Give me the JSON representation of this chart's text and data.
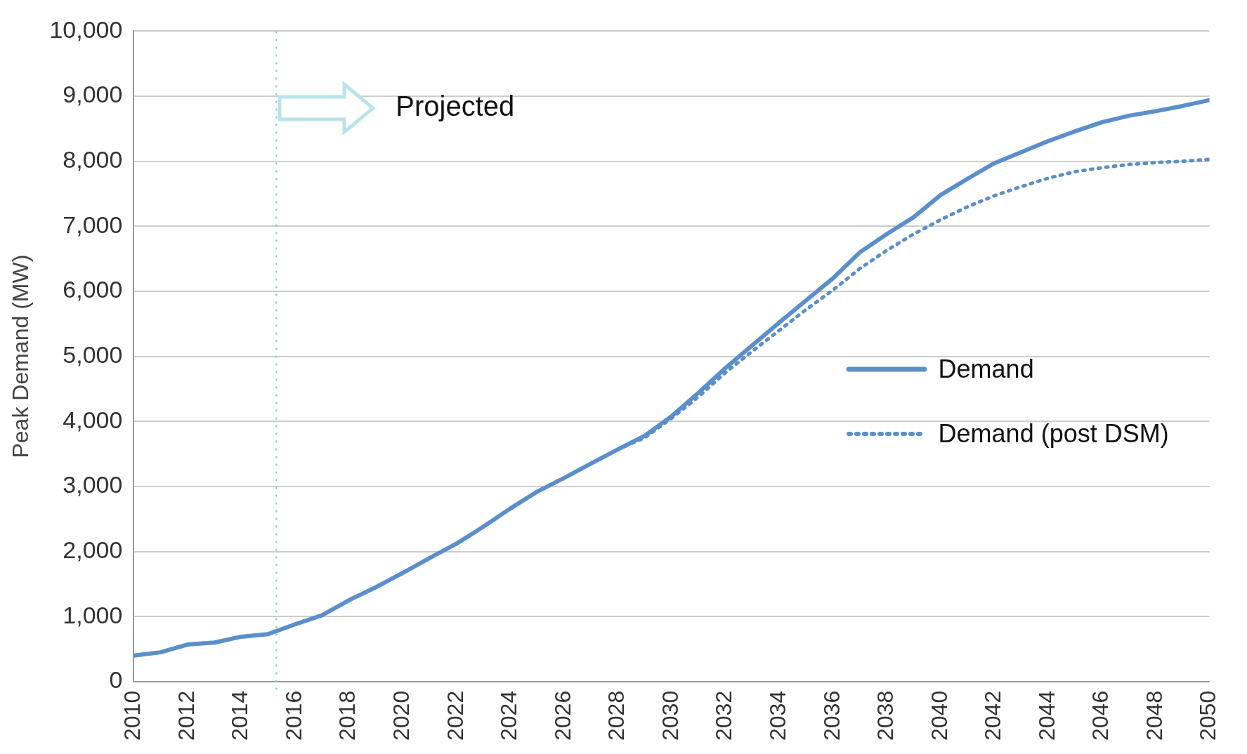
{
  "chart_data": {
    "type": "line",
    "ylabel": "Peak Demand (MW)",
    "x": [
      2010,
      2011,
      2012,
      2013,
      2014,
      2015,
      2016,
      2017,
      2018,
      2019,
      2020,
      2021,
      2022,
      2023,
      2024,
      2025,
      2026,
      2027,
      2028,
      2029,
      2030,
      2031,
      2032,
      2033,
      2034,
      2035,
      2036,
      2037,
      2038,
      2039,
      2040,
      2041,
      2042,
      2043,
      2044,
      2045,
      2046,
      2047,
      2048,
      2049,
      2050
    ],
    "xlim": [
      2010,
      2050
    ],
    "xticks": [
      2010,
      2012,
      2014,
      2016,
      2018,
      2020,
      2022,
      2024,
      2026,
      2028,
      2030,
      2032,
      2034,
      2036,
      2038,
      2040,
      2042,
      2044,
      2046,
      2048,
      2050
    ],
    "series": [
      {
        "name": "Demand",
        "color": "#5b8fcb",
        "line_style": "solid",
        "values": [
          400,
          450,
          570,
          600,
          690,
          730,
          880,
          1020,
          1250,
          1450,
          1670,
          1900,
          2120,
          2380,
          2660,
          2920,
          3130,
          3350,
          3570,
          3780,
          4080,
          4440,
          4820,
          5170,
          5520,
          5860,
          6200,
          6600,
          6880,
          7140,
          7480,
          7730,
          7970,
          8140,
          8310,
          8460,
          8600,
          8700,
          8770,
          8850,
          8940
        ]
      },
      {
        "name": "Demand (post DSM)",
        "color": "#5b8fcb",
        "line_style": "dotted",
        "values": [
          400,
          450,
          570,
          600,
          690,
          730,
          880,
          1020,
          1250,
          1450,
          1670,
          1900,
          2120,
          2380,
          2660,
          2920,
          3130,
          3350,
          3570,
          3750,
          4050,
          4380,
          4750,
          5080,
          5400,
          5720,
          6020,
          6350,
          6630,
          6880,
          7100,
          7300,
          7470,
          7610,
          7740,
          7840,
          7900,
          7950,
          7980,
          8000,
          8030
        ]
      }
    ],
    "ylim": [
      0,
      10000
    ],
    "yticks": [
      0,
      {
        "value": 1000,
        "label": "1,000"
      },
      {
        "value": 2000,
        "label": "2,000"
      },
      {
        "value": 3000,
        "label": "3,000"
      },
      {
        "value": 4000,
        "label": "4,000"
      },
      {
        "value": 5000,
        "label": "5,000"
      },
      {
        "value": 6000,
        "label": "6,000"
      },
      {
        "value": 7000,
        "label": "7,000"
      },
      {
        "value": 8000,
        "label": "8,000"
      },
      {
        "value": 9000,
        "label": "9,000"
      },
      {
        "value": 10000,
        "label": "10,000"
      }
    ],
    "grid": "y",
    "legend": "right",
    "marker": "none",
    "ref_lines": [
      {
        "axis": "x",
        "value": 2015.3,
        "color": "#7ecbd6",
        "line_style": "dotted"
      }
    ],
    "annotations": [
      "Projected"
    ]
  }
}
